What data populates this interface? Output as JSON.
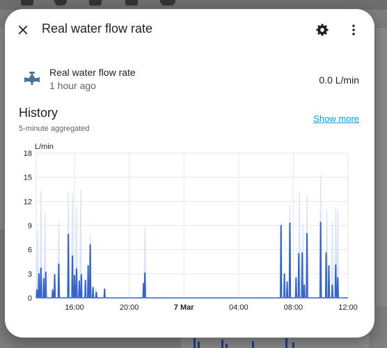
{
  "dialog": {
    "title": "Real water flow rate",
    "close_icon": "close-icon",
    "settings_icon": "gear-icon",
    "menu_icon": "more-vertical-icon"
  },
  "entity": {
    "name": "Real water flow rate",
    "last_changed": "1 hour ago",
    "state": "0.0 L/min",
    "icon": "water-pump-icon"
  },
  "history": {
    "title": "History",
    "subtitle": "5-minute aggregated",
    "show_more": "Show more"
  },
  "colors": {
    "line": "#3563c9",
    "band": "#dbe4f6",
    "link": "#039be5"
  },
  "chart_data": {
    "type": "line",
    "ylabel": "L/min",
    "ylim": [
      0,
      18
    ],
    "yticks": [
      "0",
      "3",
      "6",
      "9",
      "12",
      "15",
      "18"
    ],
    "xlim": [
      13.2,
      36.0
    ],
    "xticks": [
      {
        "x": 16,
        "label": "16:00",
        "bold": false
      },
      {
        "x": 20,
        "label": "20:00",
        "bold": false
      },
      {
        "x": 24,
        "label": "7 Mar",
        "bold": true
      },
      {
        "x": 28,
        "label": "04:00",
        "bold": false
      },
      {
        "x": 32,
        "label": "08:00",
        "bold": false
      },
      {
        "x": 36,
        "label": "12:00",
        "bold": false
      }
    ],
    "grid": true,
    "series": [
      {
        "mean_spikes": [
          [
            13.25,
            1.0
          ],
          [
            13.4,
            3.0
          ],
          [
            13.55,
            3.7
          ],
          [
            13.75,
            2.4
          ],
          [
            13.9,
            3.2
          ],
          [
            14.4,
            1.0
          ],
          [
            14.55,
            2.9
          ],
          [
            14.85,
            4.2
          ],
          [
            15.55,
            7.9
          ],
          [
            15.85,
            5.2
          ],
          [
            16.0,
            2.8
          ],
          [
            16.15,
            3.6
          ],
          [
            16.35,
            2.1
          ],
          [
            16.5,
            2.9
          ],
          [
            16.8,
            2.2
          ],
          [
            17.0,
            4.0
          ],
          [
            17.15,
            6.6
          ],
          [
            17.35,
            1.3
          ],
          [
            17.6,
            0.7
          ],
          [
            18.2,
            1.1
          ],
          [
            21.05,
            1.8
          ],
          [
            21.15,
            3.1
          ],
          [
            31.1,
            9.0
          ],
          [
            31.35,
            3.0
          ],
          [
            31.55,
            2.0
          ],
          [
            31.75,
            9.3
          ],
          [
            32.2,
            2.5
          ],
          [
            32.4,
            5.5
          ],
          [
            32.65,
            5.6
          ],
          [
            32.8,
            1.6
          ],
          [
            33.0,
            8.0
          ],
          [
            34.0,
            9.4
          ],
          [
            34.4,
            5.6
          ],
          [
            34.6,
            4.0
          ],
          [
            34.85,
            1.6
          ],
          [
            35.1,
            4.1
          ],
          [
            35.25,
            2.5
          ]
        ],
        "max_spikes": [
          [
            13.3,
            8.5
          ],
          [
            13.55,
            13.3
          ],
          [
            13.85,
            10.5
          ],
          [
            14.85,
            9.5
          ],
          [
            15.55,
            13.2
          ],
          [
            15.85,
            13.0
          ],
          [
            16.15,
            11.3
          ],
          [
            16.45,
            13.5
          ],
          [
            17.15,
            8.0
          ],
          [
            17.55,
            1.3
          ],
          [
            21.15,
            8.8
          ],
          [
            31.1,
            9.4
          ],
          [
            31.75,
            11.5
          ],
          [
            32.45,
            13.3
          ],
          [
            32.7,
            9.3
          ],
          [
            33.0,
            12.8
          ],
          [
            34.0,
            15.3
          ],
          [
            34.45,
            11.0
          ],
          [
            34.85,
            9.5
          ],
          [
            35.1,
            11.3
          ],
          [
            35.25,
            11.0
          ]
        ]
      }
    ]
  }
}
